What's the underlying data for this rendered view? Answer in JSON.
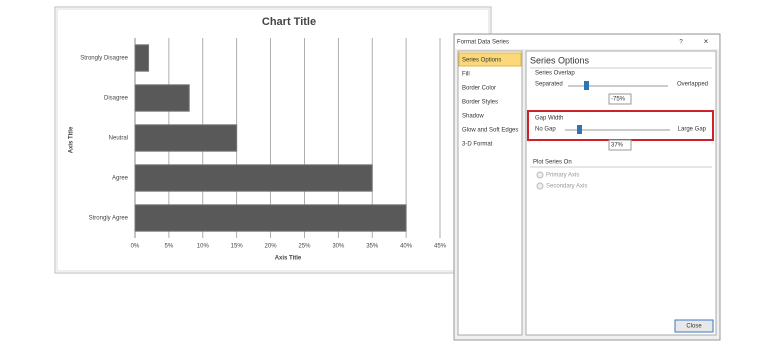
{
  "chart_data": {
    "type": "bar",
    "orientation": "horizontal",
    "title": "Chart Title",
    "x_label": "Axis Title",
    "y_label": "Axis Title",
    "categories": [
      "Strongly Disagree",
      "Disagree",
      "Neutral",
      "Agree",
      "Strongly Agree"
    ],
    "values": [
      2,
      8,
      15,
      35,
      40
    ],
    "color": "#595959",
    "xlim": [
      0,
      45
    ],
    "xticks": [
      {
        "value": 0,
        "label": "0%"
      },
      {
        "value": 5,
        "label": "5%"
      },
      {
        "value": 10,
        "label": "10%"
      },
      {
        "value": 15,
        "label": "15%"
      },
      {
        "value": 20,
        "label": "20%"
      },
      {
        "value": 25,
        "label": "25%"
      },
      {
        "value": 30,
        "label": "30%"
      },
      {
        "value": 35,
        "label": "35%"
      },
      {
        "value": 40,
        "label": "40%"
      },
      {
        "value": 45,
        "label": "45%"
      }
    ],
    "grid": true
  },
  "dialog": {
    "title": "Format Data Series",
    "help": "?",
    "close_icon": "×",
    "nav": [
      "Series Options",
      "Fill",
      "Border Color",
      "Border Styles",
      "Shadow",
      "Glow and Soft Edges",
      "3-D Format"
    ],
    "heading": "Series Options",
    "overlap": {
      "label": "Series Overlap",
      "min_label": "Separated",
      "max_label": "Overlapped",
      "value": "-75%"
    },
    "gap": {
      "label": "Gap Width",
      "min_label": "No Gap",
      "max_label": "Large Gap",
      "value": "37%"
    },
    "plot_on": {
      "label": "Plot Series On",
      "options": [
        "Primary Axis",
        "Secondary Axis"
      ]
    },
    "close_button": "Close"
  }
}
